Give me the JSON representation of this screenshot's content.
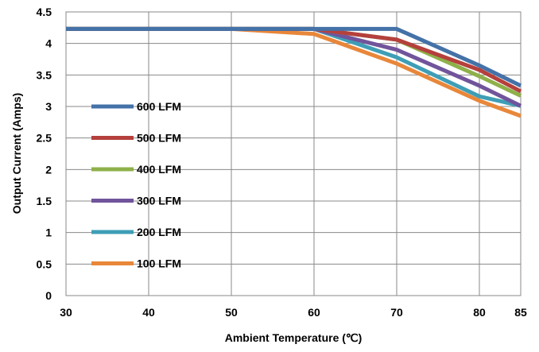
{
  "chart_data": {
    "type": "line",
    "xlabel": "Ambient Temperature (℃)",
    "ylabel": "Output Current (Amps)",
    "x": [
      30,
      40,
      50,
      60,
      70,
      80,
      85
    ],
    "xlim": [
      30,
      85
    ],
    "ylim": [
      0,
      4.5
    ],
    "xticks": [
      "30",
      "40",
      "50",
      "60",
      "70",
      "80",
      "85"
    ],
    "yticks": [
      "0",
      "0.5",
      "1",
      "1.5",
      "2",
      "2.5",
      "3",
      "3.5",
      "4",
      "4.5"
    ],
    "grid": true,
    "legend_position": "left",
    "series": [
      {
        "name": "600 LFM",
        "color": "#4472A8",
        "x": [
          30,
          40,
          50,
          60,
          70,
          80,
          85
        ],
        "values": [
          4.23,
          4.23,
          4.23,
          4.23,
          4.23,
          3.65,
          3.33
        ]
      },
      {
        "name": "500 LFM",
        "color": "#B5403C",
        "x": [
          30,
          40,
          50,
          60,
          70,
          80,
          85
        ],
        "values": [
          4.23,
          4.23,
          4.23,
          4.23,
          4.06,
          3.58,
          3.24
        ]
      },
      {
        "name": "400 LFM",
        "color": "#8EB04A",
        "x": [
          30,
          40,
          50,
          60,
          70,
          80,
          85
        ],
        "values": [
          4.23,
          4.23,
          4.23,
          4.23,
          4.06,
          3.48,
          3.17
        ]
      },
      {
        "name": "300 LFM",
        "color": "#71549B",
        "x": [
          30,
          40,
          50,
          60,
          70,
          80,
          85
        ],
        "values": [
          4.23,
          4.23,
          4.23,
          4.23,
          3.9,
          3.33,
          3.01
        ]
      },
      {
        "name": "200 LFM",
        "color": "#3E9EB6",
        "x": [
          30,
          40,
          50,
          60,
          70,
          80,
          85
        ],
        "values": [
          4.23,
          4.23,
          4.23,
          4.23,
          3.78,
          3.16,
          3.01
        ]
      },
      {
        "name": "100 LFM",
        "color": "#E8873A",
        "x": [
          30,
          40,
          50,
          60,
          70,
          80,
          85
        ],
        "values": [
          4.23,
          4.23,
          4.23,
          4.15,
          3.68,
          3.09,
          2.85
        ]
      }
    ]
  }
}
